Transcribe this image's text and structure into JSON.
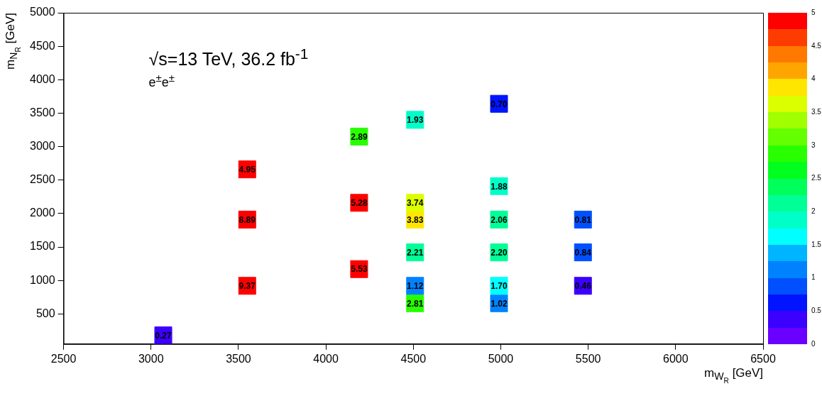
{
  "chart_data": {
    "type": "scatter",
    "xlabel": "m$_{W}$$_{R}$ [GeV]",
    "ylabel": "m$_{N}$$_{R}$ [GeV]",
    "annotations": [
      "√s=13 TeV, 36.2 fb$^{-1}$",
      "e$^{±}$e$^{±}$",
      {
        "text": "0.27",
        "x": 3070,
        "y": 180
      },
      {
        "text": "9.37",
        "x": 3550,
        "y": 920
      },
      {
        "text": "8.89",
        "x": 3550,
        "y": 1910
      },
      {
        "text": "4.95",
        "x": 3550,
        "y": 2660
      },
      {
        "text": "5.53",
        "x": 4190,
        "y": 1170
      },
      {
        "text": "5.28",
        "x": 4190,
        "y": 2160
      },
      {
        "text": "2.89",
        "x": 4190,
        "y": 3150
      },
      {
        "text": "2.81",
        "x": 4510,
        "y": 660
      },
      {
        "text": "1.12",
        "x": 4510,
        "y": 920
      },
      {
        "text": "2.21",
        "x": 4510,
        "y": 1420
      },
      {
        "text": "3.83",
        "x": 4510,
        "y": 1910
      },
      {
        "text": "3.74",
        "x": 4510,
        "y": 2160
      },
      {
        "text": "1.93",
        "x": 4510,
        "y": 3400
      },
      {
        "text": "1.02",
        "x": 4990,
        "y": 660
      },
      {
        "text": "1.70",
        "x": 4990,
        "y": 920
      },
      {
        "text": "2.20",
        "x": 4990,
        "y": 1420
      },
      {
        "text": "2.06",
        "x": 4990,
        "y": 1910
      },
      {
        "text": "1.88",
        "x": 4990,
        "y": 2410
      },
      {
        "text": "0.70",
        "x": 4990,
        "y": 3640
      },
      {
        "text": "0.46",
        "x": 5470,
        "y": 920
      },
      {
        "text": "0.84",
        "x": 5470,
        "y": 1420
      },
      {
        "text": "0.81",
        "x": 5470,
        "y": 1910
      }
    ],
    "x": [
      3070,
      3550,
      3550,
      3550,
      4190,
      4190,
      4190,
      4510,
      4510,
      4510,
      4510,
      4510,
      4510,
      4990,
      4990,
      4990,
      4990,
      4990,
      4990,
      5470,
      5470,
      5470
    ],
    "values": [
      180,
      920,
      1910,
      2660,
      1170,
      2160,
      3150,
      660,
      920,
      1420,
      1910,
      2160,
      3400,
      660,
      920,
      1420,
      1910,
      2410,
      3640,
      920,
      1420,
      1910
    ],
    "cvalues": [
      0.27,
      9.37,
      8.89,
      4.95,
      5.53,
      5.28,
      2.89,
      2.81,
      1.12,
      2.21,
      3.83,
      3.74,
      1.93,
      1.02,
      1.7,
      2.2,
      2.06,
      1.88,
      0.7,
      0.46,
      0.84,
      0.81
    ],
    "marker": "square",
    "xlim": [
      2500,
      6500
    ],
    "xticks": [
      2500,
      3000,
      3500,
      4000,
      4500,
      5000,
      5500,
      6000,
      6500
    ],
    "ylim": [
      50,
      5000
    ],
    "yticks": [
      500,
      1000,
      1500,
      2000,
      2500,
      3000,
      3500,
      4000,
      4500,
      5000
    ],
    "clim": [
      0,
      5
    ],
    "cticks": [
      0,
      0.5,
      1,
      1.5,
      2,
      2.5,
      3,
      3.5,
      4,
      4.5,
      5
    ],
    "grid": false,
    "legend": false
  }
}
